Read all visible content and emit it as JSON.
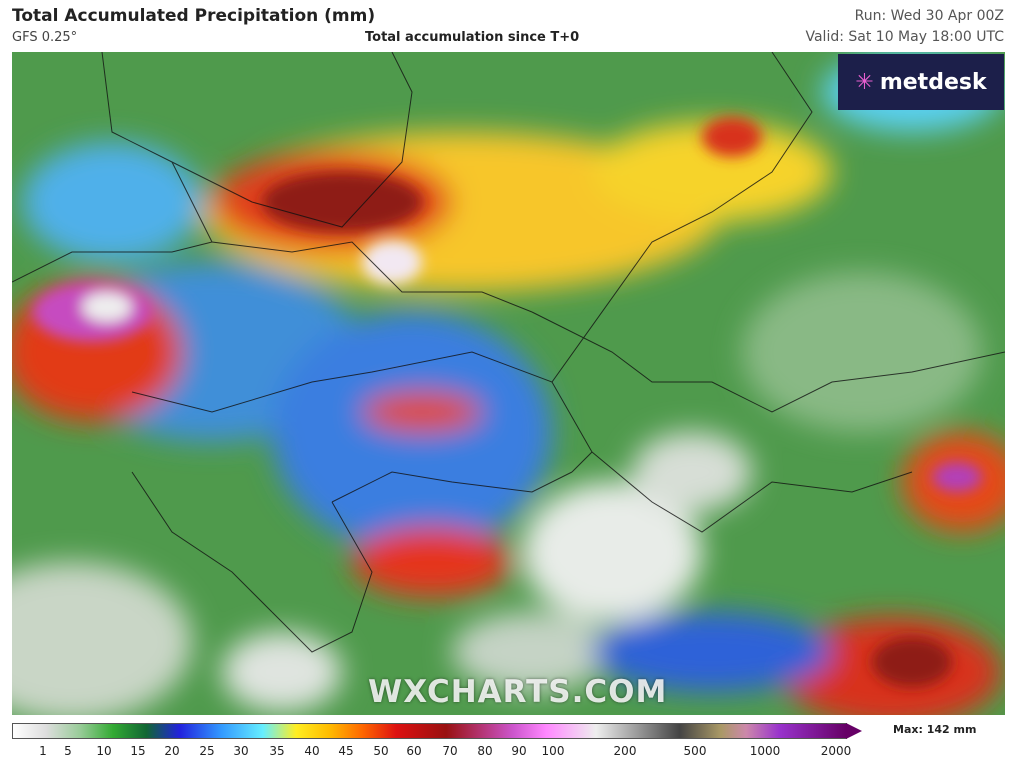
{
  "header": {
    "title": "Total Accumulated Precipitation (mm)",
    "model": "GFS 0.25°",
    "subtitle": "Total accumulation since T+0",
    "run": "Run: Wed 30 Apr 00Z",
    "valid": "Valid: Sat 10 May 18:00 UTC"
  },
  "logo": "metdesk",
  "watermark": "WXCHARTS.COM",
  "colorbar": {
    "labels": [
      "1",
      "5",
      "10",
      "15",
      "20",
      "25",
      "30",
      "35",
      "40",
      "45",
      "50",
      "60",
      "70",
      "80",
      "90",
      "100",
      "200",
      "500",
      "1000",
      "2000"
    ],
    "max": "Max: 142 mm"
  }
}
